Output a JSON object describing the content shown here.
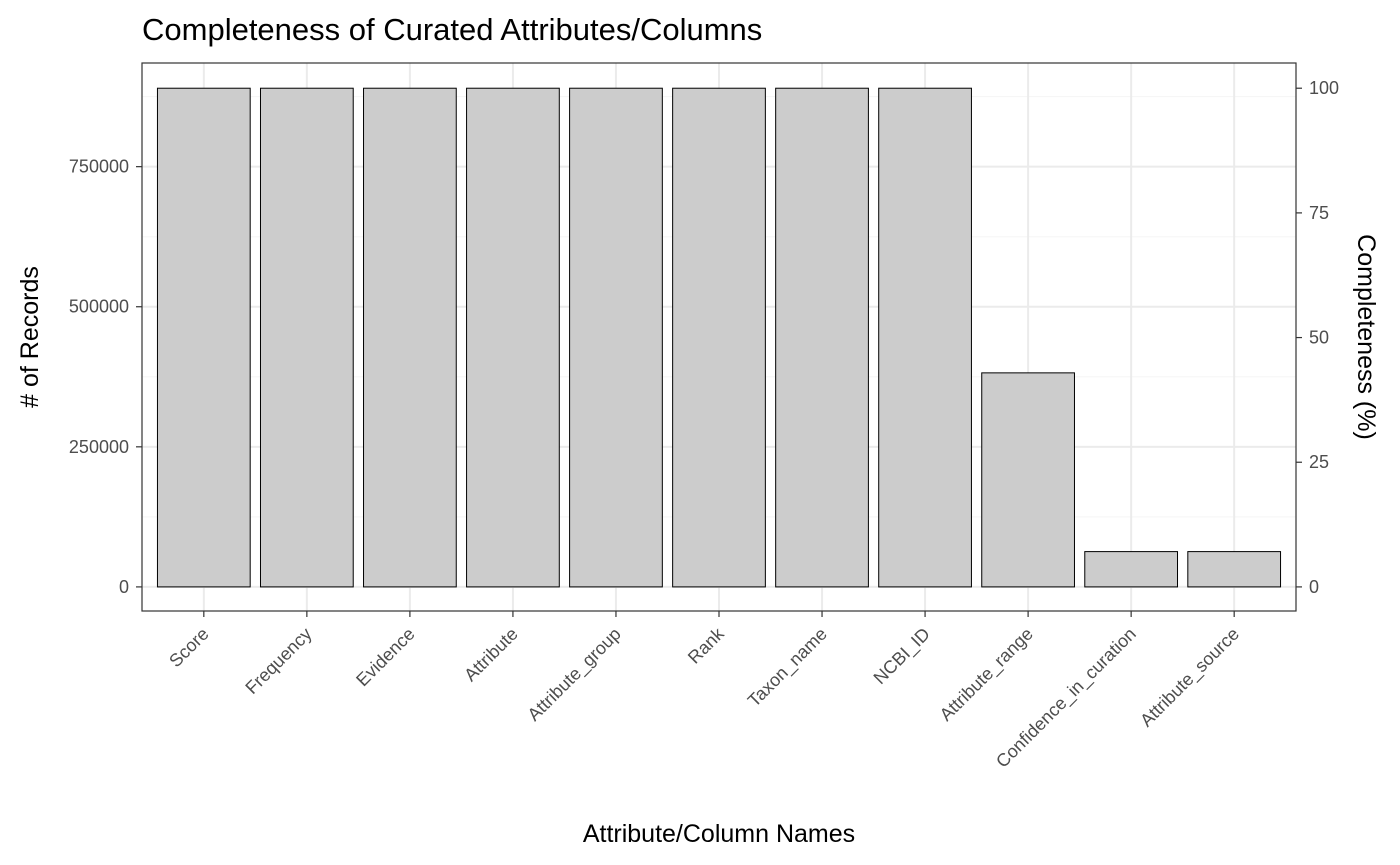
{
  "chart_data": {
    "type": "bar",
    "title": "Completeness of Curated Attributes/Columns",
    "xlabel": "Attribute/Column Names",
    "ylabel": "# of Records",
    "y2label": "Completeness (%)",
    "categories": [
      "Score",
      "Frequency",
      "Evidence",
      "Attribute",
      "Attribute_group",
      "Rank",
      "Taxon_name",
      "NCBI_ID",
      "Attribute_range",
      "Confidence_in_curation",
      "Attribute_source"
    ],
    "values": [
      890000,
      890000,
      890000,
      890000,
      890000,
      890000,
      890000,
      890000,
      382000,
      63000,
      63000
    ],
    "ylim": [
      -43000,
      935000
    ],
    "yticks": [
      0,
      250000,
      500000,
      750000
    ],
    "ytick_labels": [
      "0",
      "250000",
      "500000",
      "750000"
    ],
    "y2ticks": [
      0,
      25,
      50,
      75,
      100
    ],
    "y2tick_labels": [
      "0",
      "25",
      "50",
      "75",
      "100"
    ],
    "y2_max_records": 890000,
    "grid": true,
    "bar_fill": "#cccccc",
    "bar_stroke": "#000000",
    "grid_major_color": "#ebebeb",
    "grid_minor_color": "#f5f5f5",
    "panel_border_color": "#333333"
  }
}
